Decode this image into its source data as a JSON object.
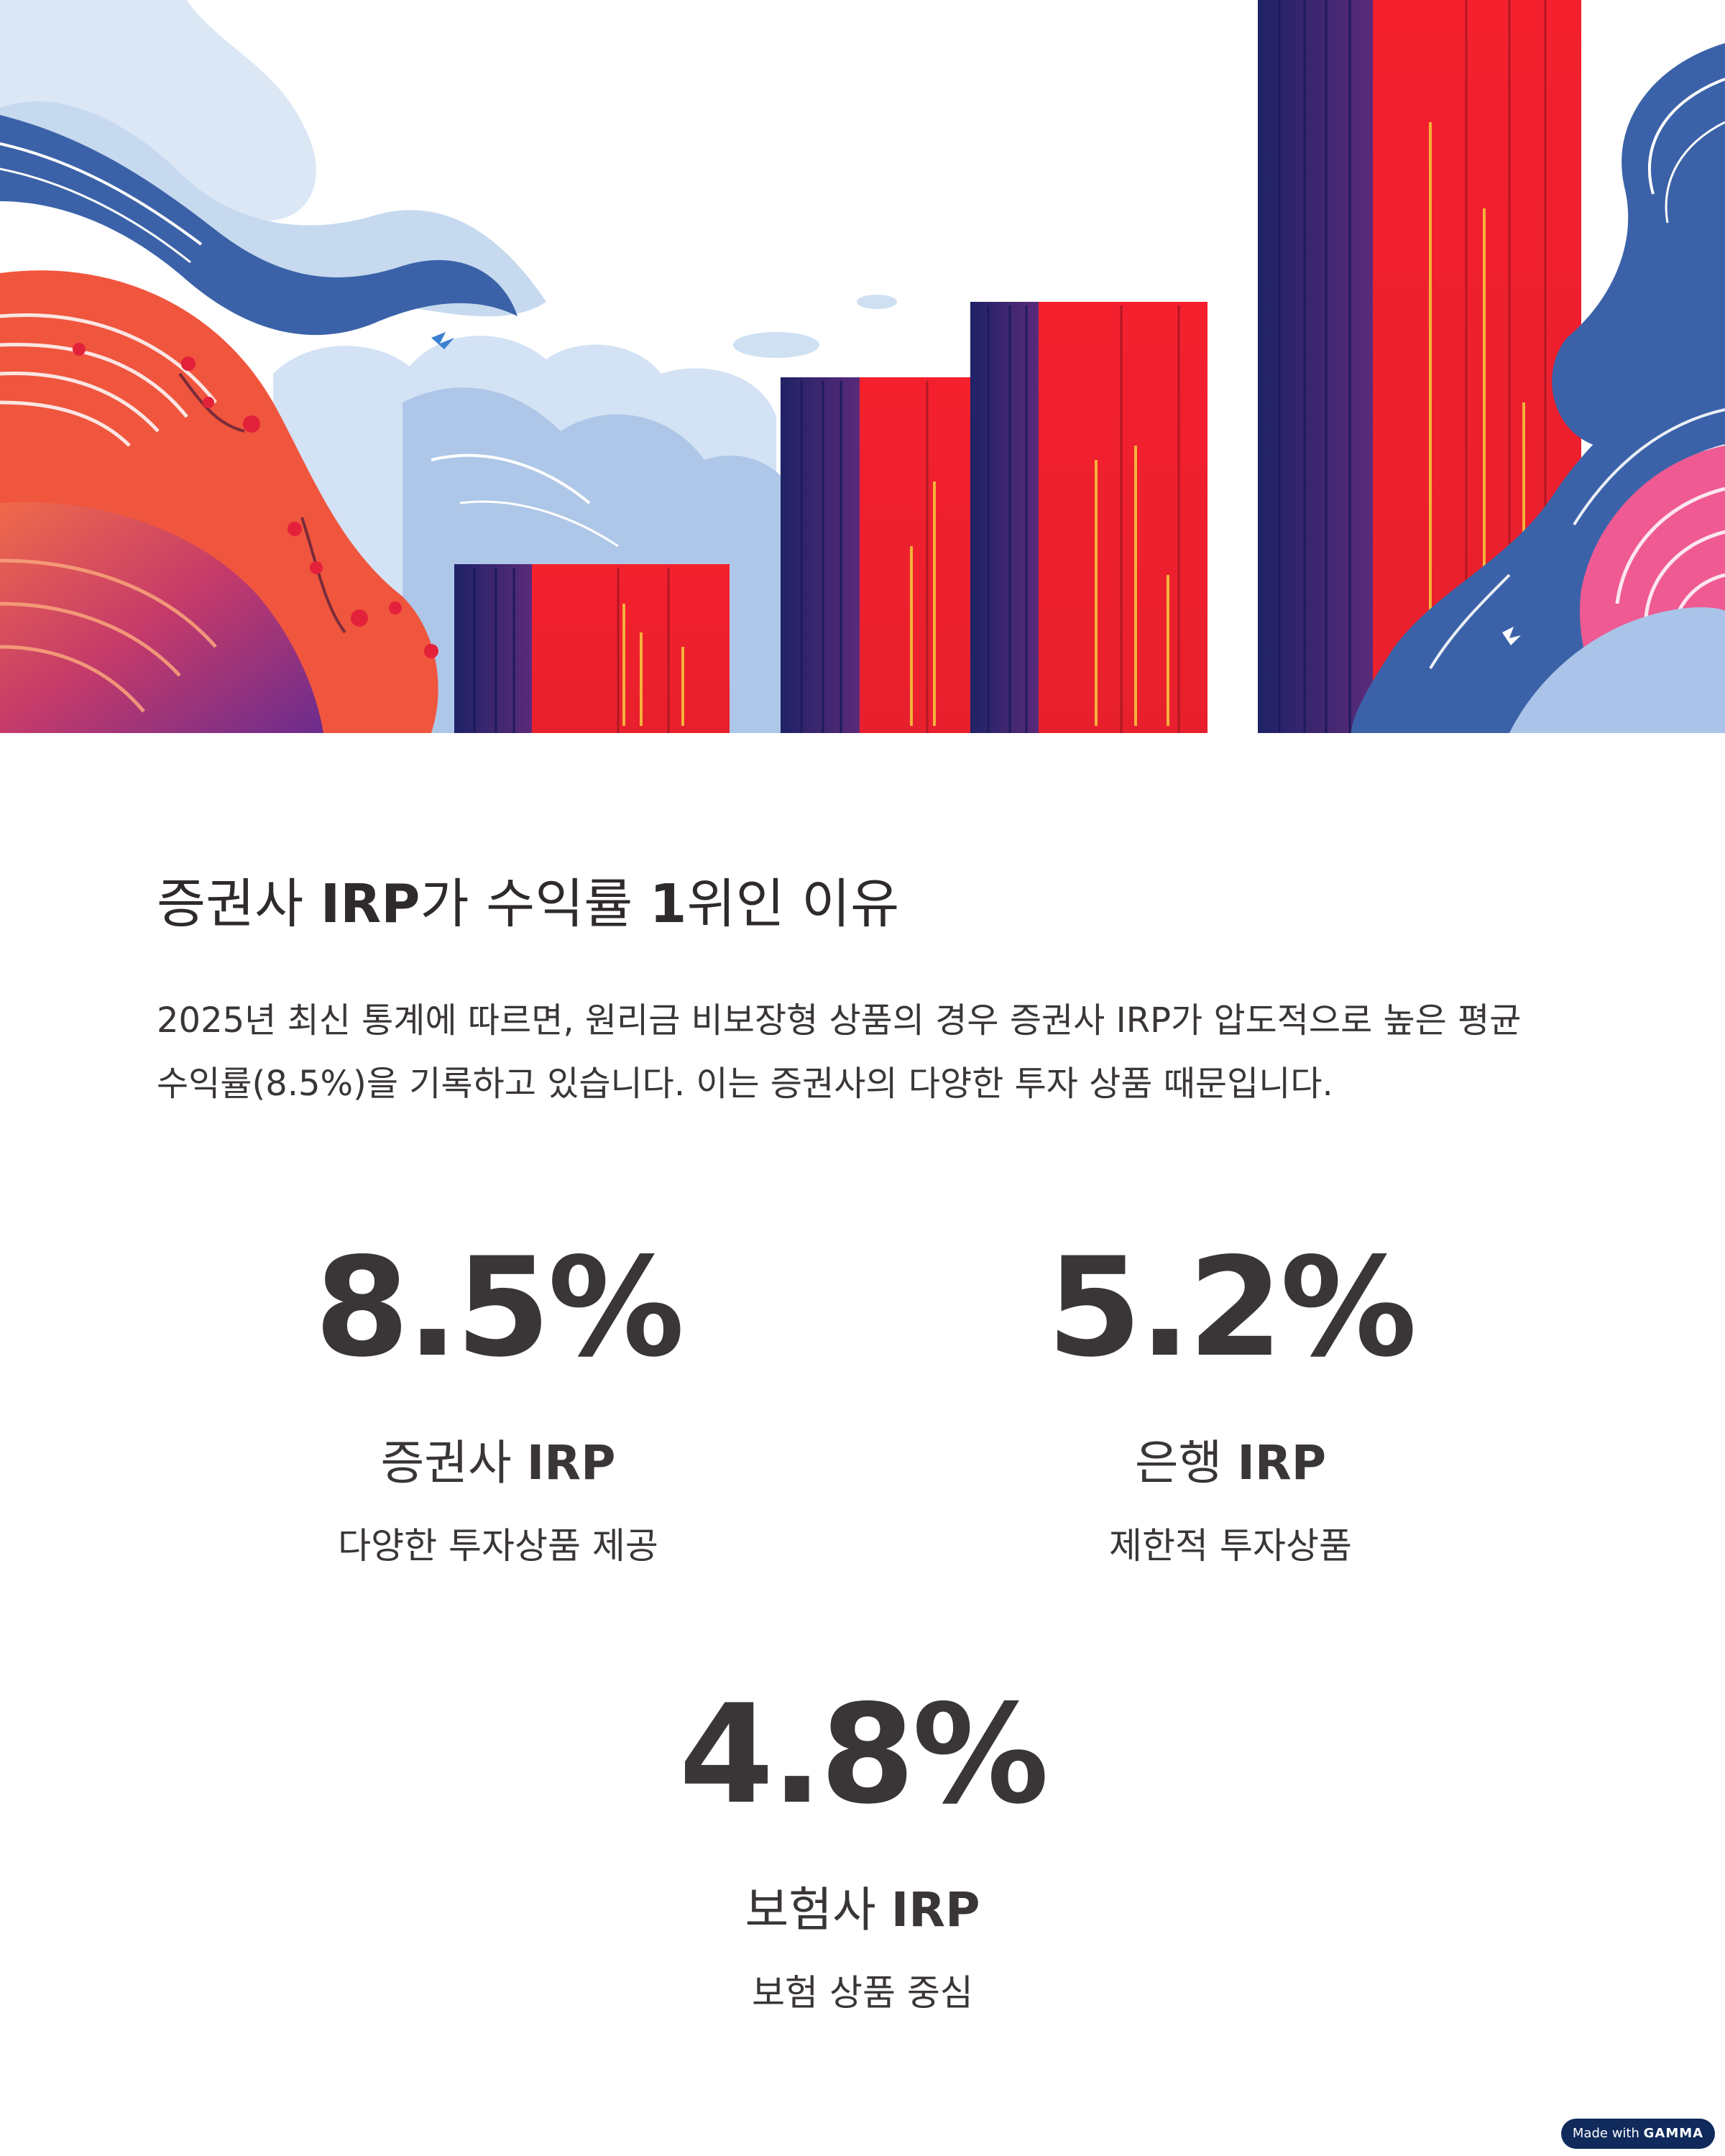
{
  "heading": {
    "part1": "증권사 ",
    "part2": "IRP",
    "part3": "가 수익률 ",
    "part4": "1",
    "part5": "위인 이유"
  },
  "description": "2025년 최신 통계에 따르면, 원리금 비보장형 상품의 경우 증권사 IRP가 압도적으로 높은 평균 수익률(8.5%)을 기록하고 있습니다. 이는 증권사의 다양한 투자 상품 때문입니다.",
  "stats": [
    {
      "value": "8.5%",
      "label_main": "증권사 ",
      "label_bold": "IRP",
      "sub": "다양한 투자상품 제공"
    },
    {
      "value": "5.2%",
      "label_main": "은행 ",
      "label_bold": "IRP",
      "sub": "제한적 투자상품"
    },
    {
      "value": "4.8%",
      "label_main": "보험사 ",
      "label_bold": "IRP",
      "sub": "보험 상품 중심"
    }
  ],
  "badge": {
    "prefix": "Made with ",
    "brand": "GAMMA"
  },
  "colors": {
    "text": "#3a3536",
    "red": "#f2232f",
    "navy": "#2a2470",
    "blue": "#3b62a8",
    "badge": "#102a5c"
  }
}
